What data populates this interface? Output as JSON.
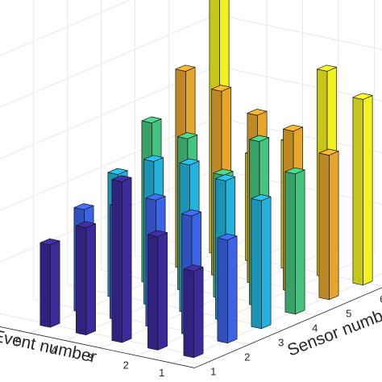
{
  "chart_data": {
    "type": "bar3d",
    "xlabel": "Event number",
    "ylabel": "Sensor number",
    "x_ticks": [
      "1",
      "2",
      "3",
      "4",
      "5"
    ],
    "y_ticks": [
      "1",
      "2",
      "3",
      "4",
      "5",
      "6"
    ],
    "grid": true,
    "legend": "none",
    "colors": [
      "#3a2a9a",
      "#3a63e6",
      "#22b2dc",
      "#45c47f",
      "#e6a62c",
      "#f2f21e"
    ],
    "values_by_sensor": [
      [
        0.42,
        0.55,
        0.78,
        0.52,
        0.4
      ],
      [
        0.5,
        0.58,
        0.62,
        0.55,
        0.5
      ],
      [
        0.62,
        0.68,
        0.72,
        0.7,
        0.6
      ],
      [
        0.68,
        0.8,
        0.6,
        0.74,
        0.78
      ],
      [
        0.7,
        0.78,
        0.82,
        0.9,
        0.96
      ],
      [
        0.9,
        1.0,
        0.62,
        0.52,
        1.25
      ]
    ]
  }
}
